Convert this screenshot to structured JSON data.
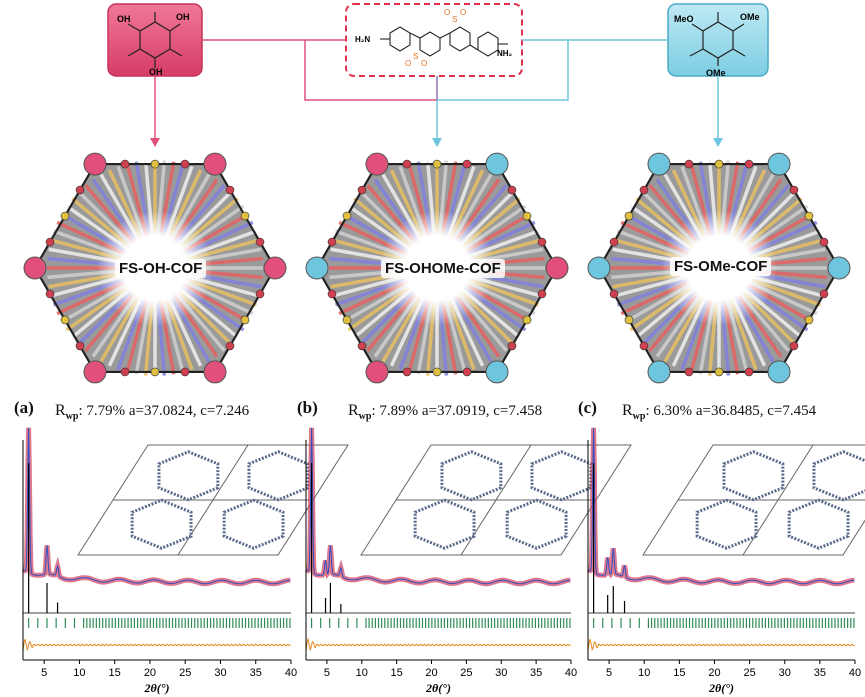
{
  "monomers": {
    "left": {
      "substituents": [
        "OH",
        "OH",
        "OH"
      ]
    },
    "center": {
      "amine_label": "H₂N",
      "amine_label_right": "NH₂",
      "sulfone": [
        "O",
        "S",
        "O"
      ]
    },
    "right": {
      "substituents": [
        "MeO",
        "OMe",
        "OMe"
      ]
    }
  },
  "cofs": [
    {
      "name": "FS-OH-COF"
    },
    {
      "name": "FS-OHOMe-COF"
    },
    {
      "name": "FS-OMe-COF"
    }
  ],
  "panels": [
    {
      "label": "(a)",
      "rwp": "7.79%",
      "a": "a=37.0824,",
      "c": "c=7.246"
    },
    {
      "label": "(b)",
      "rwp": "7.89%",
      "a": "a=37.0919,",
      "c": "c=7.458"
    },
    {
      "label": "(c)",
      "rwp": "6.30%",
      "a": "a=36.8485,",
      "c": "c=7.454"
    }
  ],
  "stat_prefix": "R",
  "stat_sub": "wp",
  "xaxis": {
    "ticks": [
      "5",
      "10",
      "15",
      "20",
      "25",
      "30",
      "35",
      "40"
    ],
    "label": "2θ(°)",
    "range": [
      2,
      40
    ]
  },
  "colors": {
    "oh": "#e0507a",
    "ome": "#6ec6de",
    "center_border": "#e0304a",
    "center_border2": "#3070c0",
    "observed": "#d04060",
    "calculated": "#3050c0",
    "difference": "#e08a20",
    "bragg": "#2e8b57"
  }
}
